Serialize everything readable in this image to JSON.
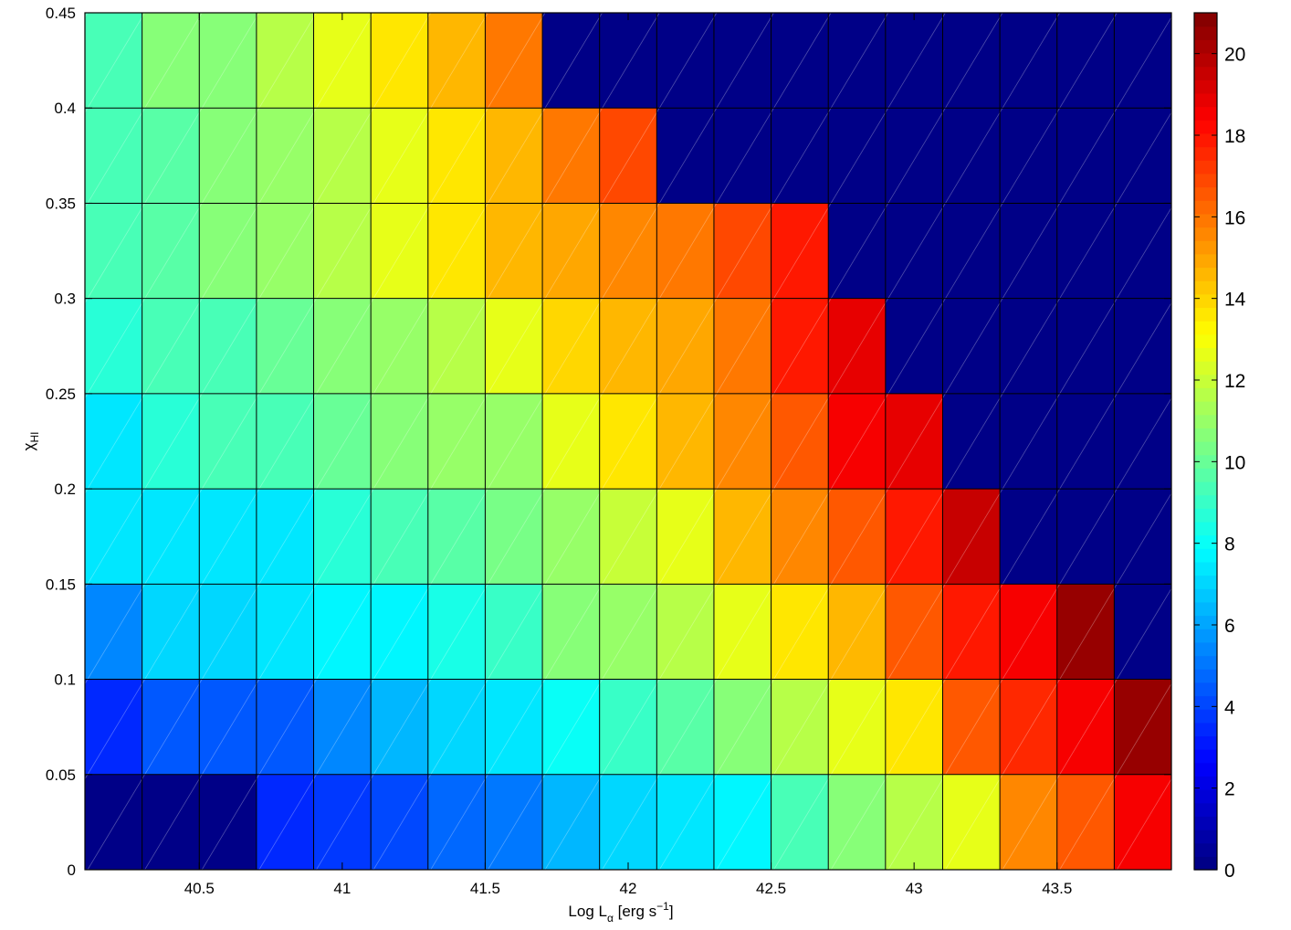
{
  "chart_data": {
    "type": "heatmap",
    "xlabel": {
      "main": "Log L",
      "subscript": "α",
      "unit_open": " [erg s",
      "superscript": "−1",
      "unit_close": "]"
    },
    "ylabel": {
      "main": "χ",
      "subscript": "HI"
    },
    "x_edges": [
      40.1,
      40.3,
      40.5,
      40.7,
      40.9,
      41.1,
      41.3,
      41.5,
      41.7,
      41.9,
      42.1,
      42.3,
      42.5,
      42.7,
      42.9,
      43.1,
      43.3,
      43.5,
      43.7,
      43.9
    ],
    "y_edges": [
      0,
      0.05,
      0.1,
      0.15,
      0.2,
      0.25,
      0.3,
      0.35,
      0.4,
      0.45
    ],
    "xlim": [
      40.1,
      43.9
    ],
    "ylim": [
      0,
      0.45
    ],
    "xticks": [
      40.5,
      41,
      41.5,
      42,
      42.5,
      43,
      43.5
    ],
    "xtick_labels": [
      "40.5",
      "41",
      "41.5",
      "42",
      "42.5",
      "43",
      "43.5"
    ],
    "yticks": [
      0,
      0.05,
      0.1,
      0.15,
      0.2,
      0.25,
      0.3,
      0.35,
      0.4,
      0.45
    ],
    "ytick_labels": [
      "0",
      "0.05",
      "0.1",
      "0.15",
      "0.2",
      "0.25",
      "0.3",
      "0.35",
      "0.4",
      "0.45"
    ],
    "colorbar": {
      "limits": [
        0,
        21
      ],
      "ticks": [
        0,
        2,
        4,
        6,
        8,
        10,
        12,
        14,
        16,
        18,
        20
      ],
      "tick_labels": [
        "0",
        "2",
        "4",
        "6",
        "8",
        "10",
        "12",
        "14",
        "16",
        "18",
        "20"
      ],
      "colormap": "jet",
      "levels": 64
    },
    "values": [
      [
        0,
        0,
        0,
        3.5,
        3.8,
        4.2,
        4.6,
        5.0,
        6.5,
        7.0,
        7.5,
        7.8,
        9.5,
        10.5,
        11.5,
        12.5,
        15.5,
        16.5,
        18.5
      ],
      [
        3.5,
        4.5,
        4.5,
        4.5,
        5.5,
        6.5,
        7,
        7.5,
        8.2,
        9,
        9.8,
        10.5,
        11.5,
        12.5,
        13.5,
        16.5,
        17.5,
        18.5,
        20.5
      ],
      [
        5.5,
        7,
        7,
        7.5,
        7.8,
        7.8,
        8.5,
        9,
        10.5,
        11,
        11.5,
        12.5,
        13.5,
        14.5,
        16.5,
        18,
        18.5,
        20.5,
        0
      ],
      [
        7.5,
        7.5,
        7.5,
        7.5,
        8.8,
        9.2,
        9.8,
        10.2,
        11,
        12,
        12.5,
        14.5,
        15.5,
        16.5,
        18,
        19.5,
        0,
        0,
        0
      ],
      [
        7.5,
        8.8,
        9.2,
        9.5,
        10,
        10.5,
        11,
        11,
        12.5,
        13.5,
        14.5,
        15.5,
        16.5,
        18.5,
        18.8,
        0,
        0,
        0,
        0
      ],
      [
        8.8,
        9.5,
        9.5,
        10,
        10.5,
        11,
        11.5,
        12.5,
        14,
        14.5,
        15,
        16,
        18,
        18.8,
        0,
        0,
        0,
        0,
        0
      ],
      [
        9.3,
        9.8,
        10.5,
        11,
        11.5,
        12.5,
        13.5,
        14.5,
        15,
        15.5,
        16,
        17,
        18,
        0,
        0,
        0,
        0,
        0,
        0
      ],
      [
        9.3,
        9.8,
        10.5,
        11,
        11.5,
        12.5,
        13.5,
        14.5,
        16,
        17,
        0,
        0,
        0,
        0,
        0,
        0,
        0,
        0,
        0
      ],
      [
        9.3,
        10.5,
        10.8,
        11.5,
        12.5,
        13.5,
        14.5,
        16,
        0,
        0,
        0,
        0,
        0,
        0,
        0,
        0,
        0,
        0,
        0
      ]
    ],
    "grid": true,
    "overlay": "diagonal hatch lines"
  }
}
